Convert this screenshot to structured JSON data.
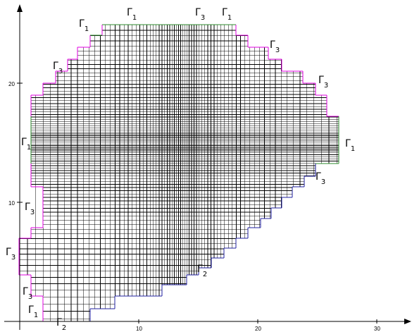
{
  "figure": {
    "colors": {
      "mesh": "#000000",
      "gamma1": "#2e8b2e",
      "gamma2": "#2020a0",
      "gamma3": "#e000e0",
      "axes": "#000000"
    },
    "x_ticks": [
      {
        "value": 10,
        "label": "10"
      },
      {
        "value": 20,
        "label": "20"
      },
      {
        "value": 30,
        "label": "30"
      }
    ],
    "y_ticks": [
      {
        "value": 10,
        "label": "10"
      },
      {
        "value": 20,
        "label": "20"
      }
    ],
    "boundary_labels": [
      {
        "symbol": "Γ",
        "sub": "1"
      },
      {
        "symbol": "Γ",
        "sub": "3"
      },
      {
        "symbol": "Γ",
        "sub": "1"
      },
      {
        "symbol": "Γ",
        "sub": "1"
      },
      {
        "symbol": "Γ",
        "sub": "3"
      },
      {
        "symbol": "Γ",
        "sub": "3"
      },
      {
        "symbol": "Γ",
        "sub": "3"
      },
      {
        "symbol": "Γ",
        "sub": "1"
      },
      {
        "symbol": "Γ",
        "sub": "1"
      },
      {
        "symbol": "Γ",
        "sub": "3"
      },
      {
        "symbol": "Γ",
        "sub": "3"
      },
      {
        "symbol": "Γ",
        "sub": "3"
      },
      {
        "symbol": "Γ",
        "sub": "2"
      },
      {
        "symbol": "Γ",
        "sub": "3"
      },
      {
        "symbol": "Γ",
        "sub": "1"
      },
      {
        "symbol": "Γ",
        "sub": "2"
      }
    ]
  }
}
